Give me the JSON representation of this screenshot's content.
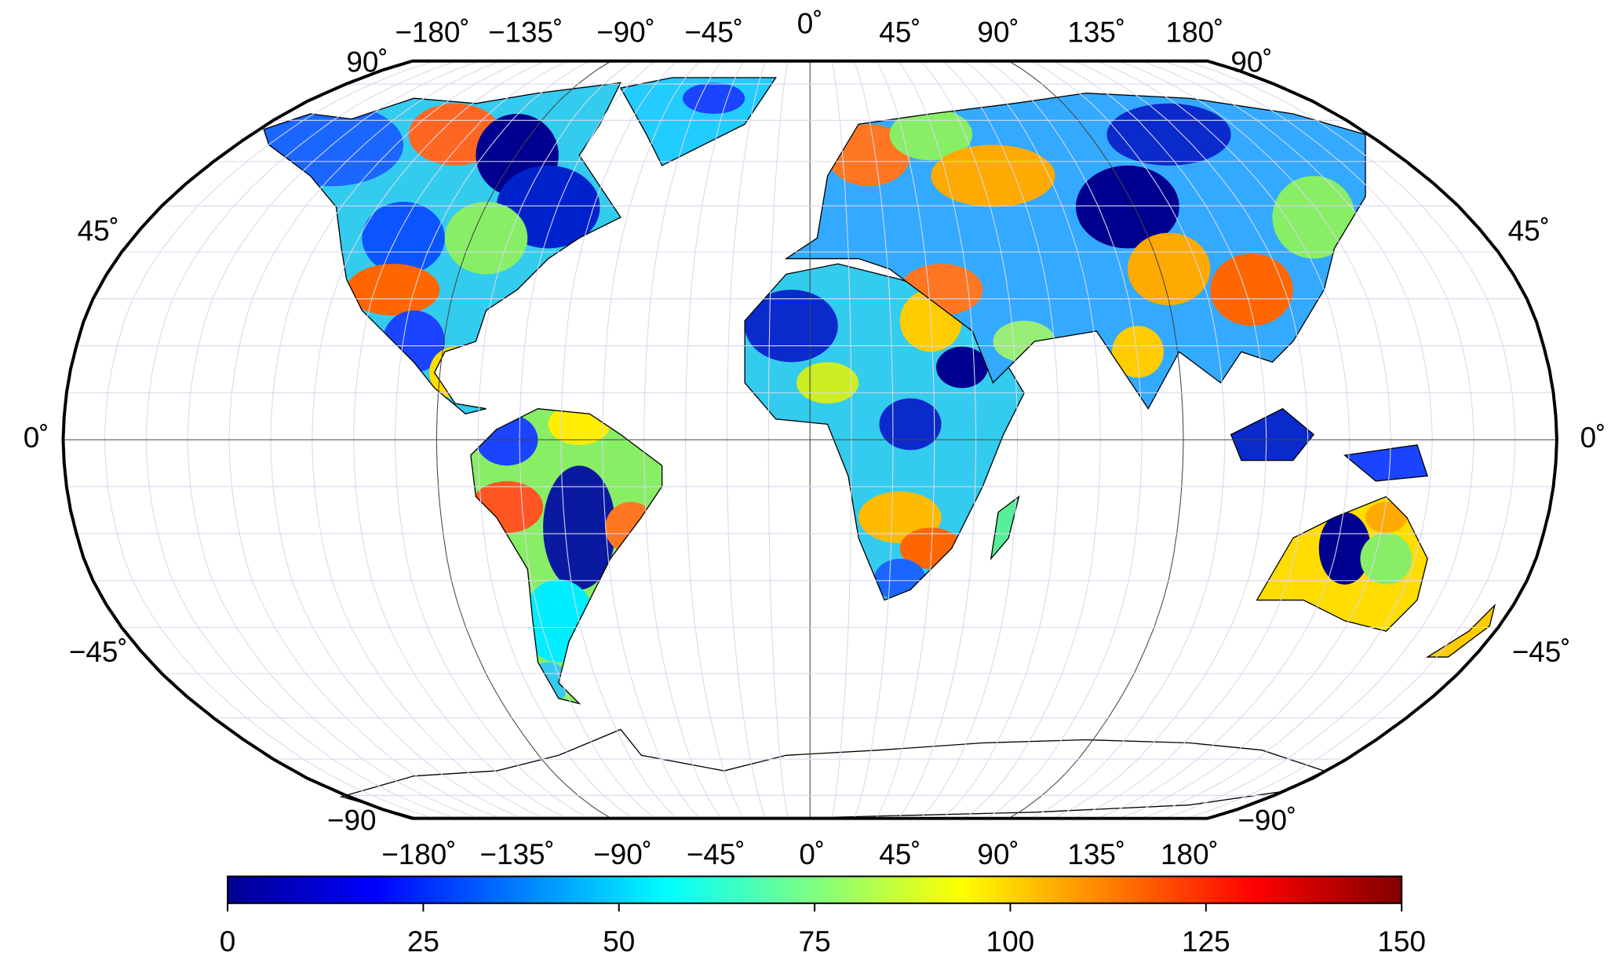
{
  "map": {
    "top_labels": [
      "90˚",
      "−180˚",
      "−135˚",
      "−90˚",
      "−45˚",
      "0˚",
      "45˚",
      "90˚",
      "135˚",
      "180˚",
      "90˚"
    ],
    "bottom_labels": [
      "−90",
      "−180˚",
      "−135˚",
      "−90˚",
      "−45˚",
      "0˚",
      "45˚",
      "90˚",
      "135˚",
      "180˚",
      "−90˚"
    ],
    "left_labels": [
      "45˚",
      "0˚",
      "−45˚"
    ],
    "right_labels": [
      "45˚",
      "0˚",
      "−45˚"
    ]
  },
  "colorbar": {
    "range": [
      0,
      150
    ],
    "ticks": [
      0,
      25,
      50,
      75,
      100,
      125,
      150
    ]
  }
}
